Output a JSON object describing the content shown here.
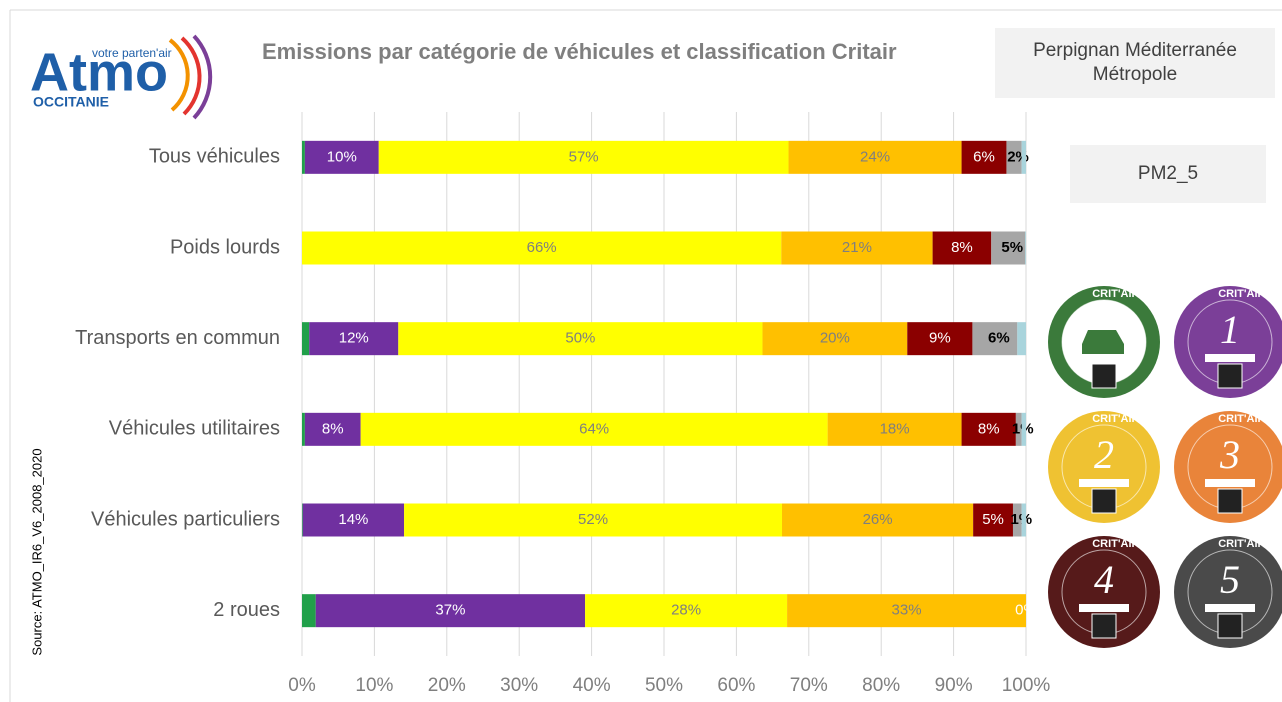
{
  "logo": {
    "name": "Atmo",
    "tagline": "votre parten'air",
    "region": "OCCITANIE"
  },
  "territory": "Perpignan Méditerranée Métropole",
  "pollutant": "PM2_5",
  "source": "Source: ATMO_IR6_V6_2008_2020",
  "stickers": {
    "brand": "CRIT'Air",
    "numbers": [
      "1",
      "2",
      "3",
      "4",
      "5"
    ]
  },
  "chart_data": {
    "type": "stacked-barh",
    "title": "Emissions par catégorie de véhicules et classification Critair",
    "categories": [
      "Tous véhicules",
      "Poids lourds",
      "Transports en commun",
      "Véhicules utilitaires",
      "Véhicules particuliers",
      "2 roues"
    ],
    "xlim": [
      0,
      100
    ],
    "xticks": [
      {
        "value": 0,
        "label": "0%"
      },
      {
        "value": 10,
        "label": "10%"
      },
      {
        "value": 20,
        "label": "20%"
      },
      {
        "value": 30,
        "label": "30%"
      },
      {
        "value": 40,
        "label": "40%"
      },
      {
        "value": 50,
        "label": "50%"
      },
      {
        "value": 60,
        "label": "60%"
      },
      {
        "value": 70,
        "label": "70%"
      },
      {
        "value": 80,
        "label": "80%"
      },
      {
        "value": 90,
        "label": "90%"
      },
      {
        "value": 100,
        "label": "100%"
      }
    ],
    "grid": true,
    "series": [
      {
        "color": "#21a04a",
        "values": [
          0.4,
          0,
          1.0,
          0.4,
          0.1,
          1.9
        ],
        "value_labels": [
          null,
          null,
          null,
          null,
          null,
          null
        ],
        "label_color": "#ffffff"
      },
      {
        "color": "#7030a0",
        "values": [
          10.2,
          0,
          12.3,
          7.7,
          14.0,
          37.2
        ],
        "value_labels": [
          "10%",
          null,
          "12%",
          "8%",
          "14%",
          "37%"
        ],
        "label_color": "#ffffff"
      },
      {
        "color": "#ffff00",
        "values": [
          56.6,
          66.2,
          50.3,
          64.5,
          52.2,
          27.9
        ],
        "value_labels": [
          "57%",
          "66%",
          "50%",
          "64%",
          "52%",
          "28%"
        ],
        "label_color": "#7f7f7f"
      },
      {
        "color": "#ffc000",
        "values": [
          23.9,
          20.9,
          20.0,
          18.5,
          26.4,
          33.0
        ],
        "value_labels": [
          "24%",
          "21%",
          "20%",
          "18%",
          "26%",
          "33%"
        ],
        "label_color": "#7f7f7f"
      },
      {
        "color": "#8b0000",
        "values": [
          6.2,
          8.1,
          9.0,
          7.5,
          5.5,
          0
        ],
        "value_labels": [
          "6%",
          "8%",
          "9%",
          "8%",
          "5%",
          "0%"
        ],
        "label_color": "#ffffff"
      },
      {
        "color": "#a6a6a6",
        "values": [
          2.1,
          4.7,
          6.2,
          0.8,
          1.2,
          0
        ],
        "value_labels": [
          "2%",
          "5%",
          "6%",
          "1%",
          "1%",
          null
        ],
        "label_color": "#000000",
        "label_bold": true
      },
      {
        "color": "#a9d4dc",
        "values": [
          0.6,
          0.1,
          1.2,
          0.6,
          0.6,
          0
        ],
        "value_labels": [
          null,
          null,
          null,
          null,
          null,
          null
        ],
        "label_color": "#000000"
      }
    ]
  }
}
